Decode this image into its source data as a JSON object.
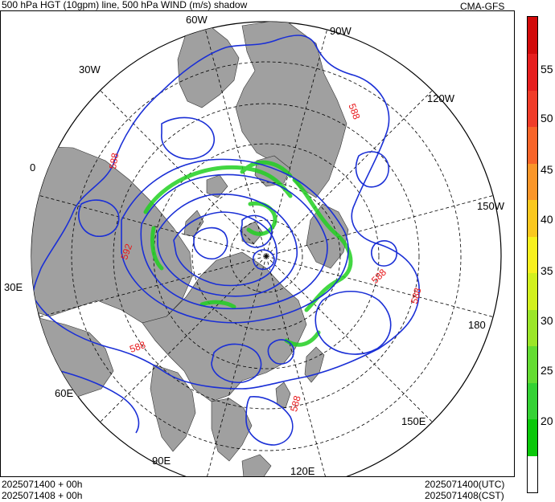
{
  "header": {
    "title": "500 hPa HGT (10gpm) line, 500 hPa WIND (m/s) shadow",
    "model": "CMA-GFS"
  },
  "map": {
    "projection": "polar-stereographic-north",
    "longitude_labels": [
      "60W",
      "90W",
      "30W",
      "120W",
      "0",
      "150W",
      "30E",
      "180",
      "60E",
      "150E",
      "90E",
      "120E"
    ],
    "contour_labels": [
      "588",
      "588",
      "588",
      "588",
      "588",
      "588",
      "592"
    ],
    "colors": {
      "land": "#a0a0a0",
      "ocean": "#ffffff",
      "contour": "#1a2fd6",
      "contour_label": "#e8171a"
    }
  },
  "colorbar": {
    "ticks": [
      "55",
      "50",
      "45",
      "40",
      "35",
      "30",
      "25",
      "20"
    ],
    "colors": [
      "#ffffff",
      "#0ac80a",
      "#34d234",
      "#64dc32",
      "#9be628",
      "#d2f01e",
      "#f8f01e",
      "#fac81e",
      "#fa9628",
      "#f86428",
      "#f03c28",
      "#e61e1e",
      "#d20a0a"
    ]
  },
  "footer": {
    "left_line1": "2025071400 + 00h",
    "left_line2": "2025071408 + 00h",
    "right_line1": "2025071400(UTC)",
    "right_line2": "2025071408(CST)"
  }
}
